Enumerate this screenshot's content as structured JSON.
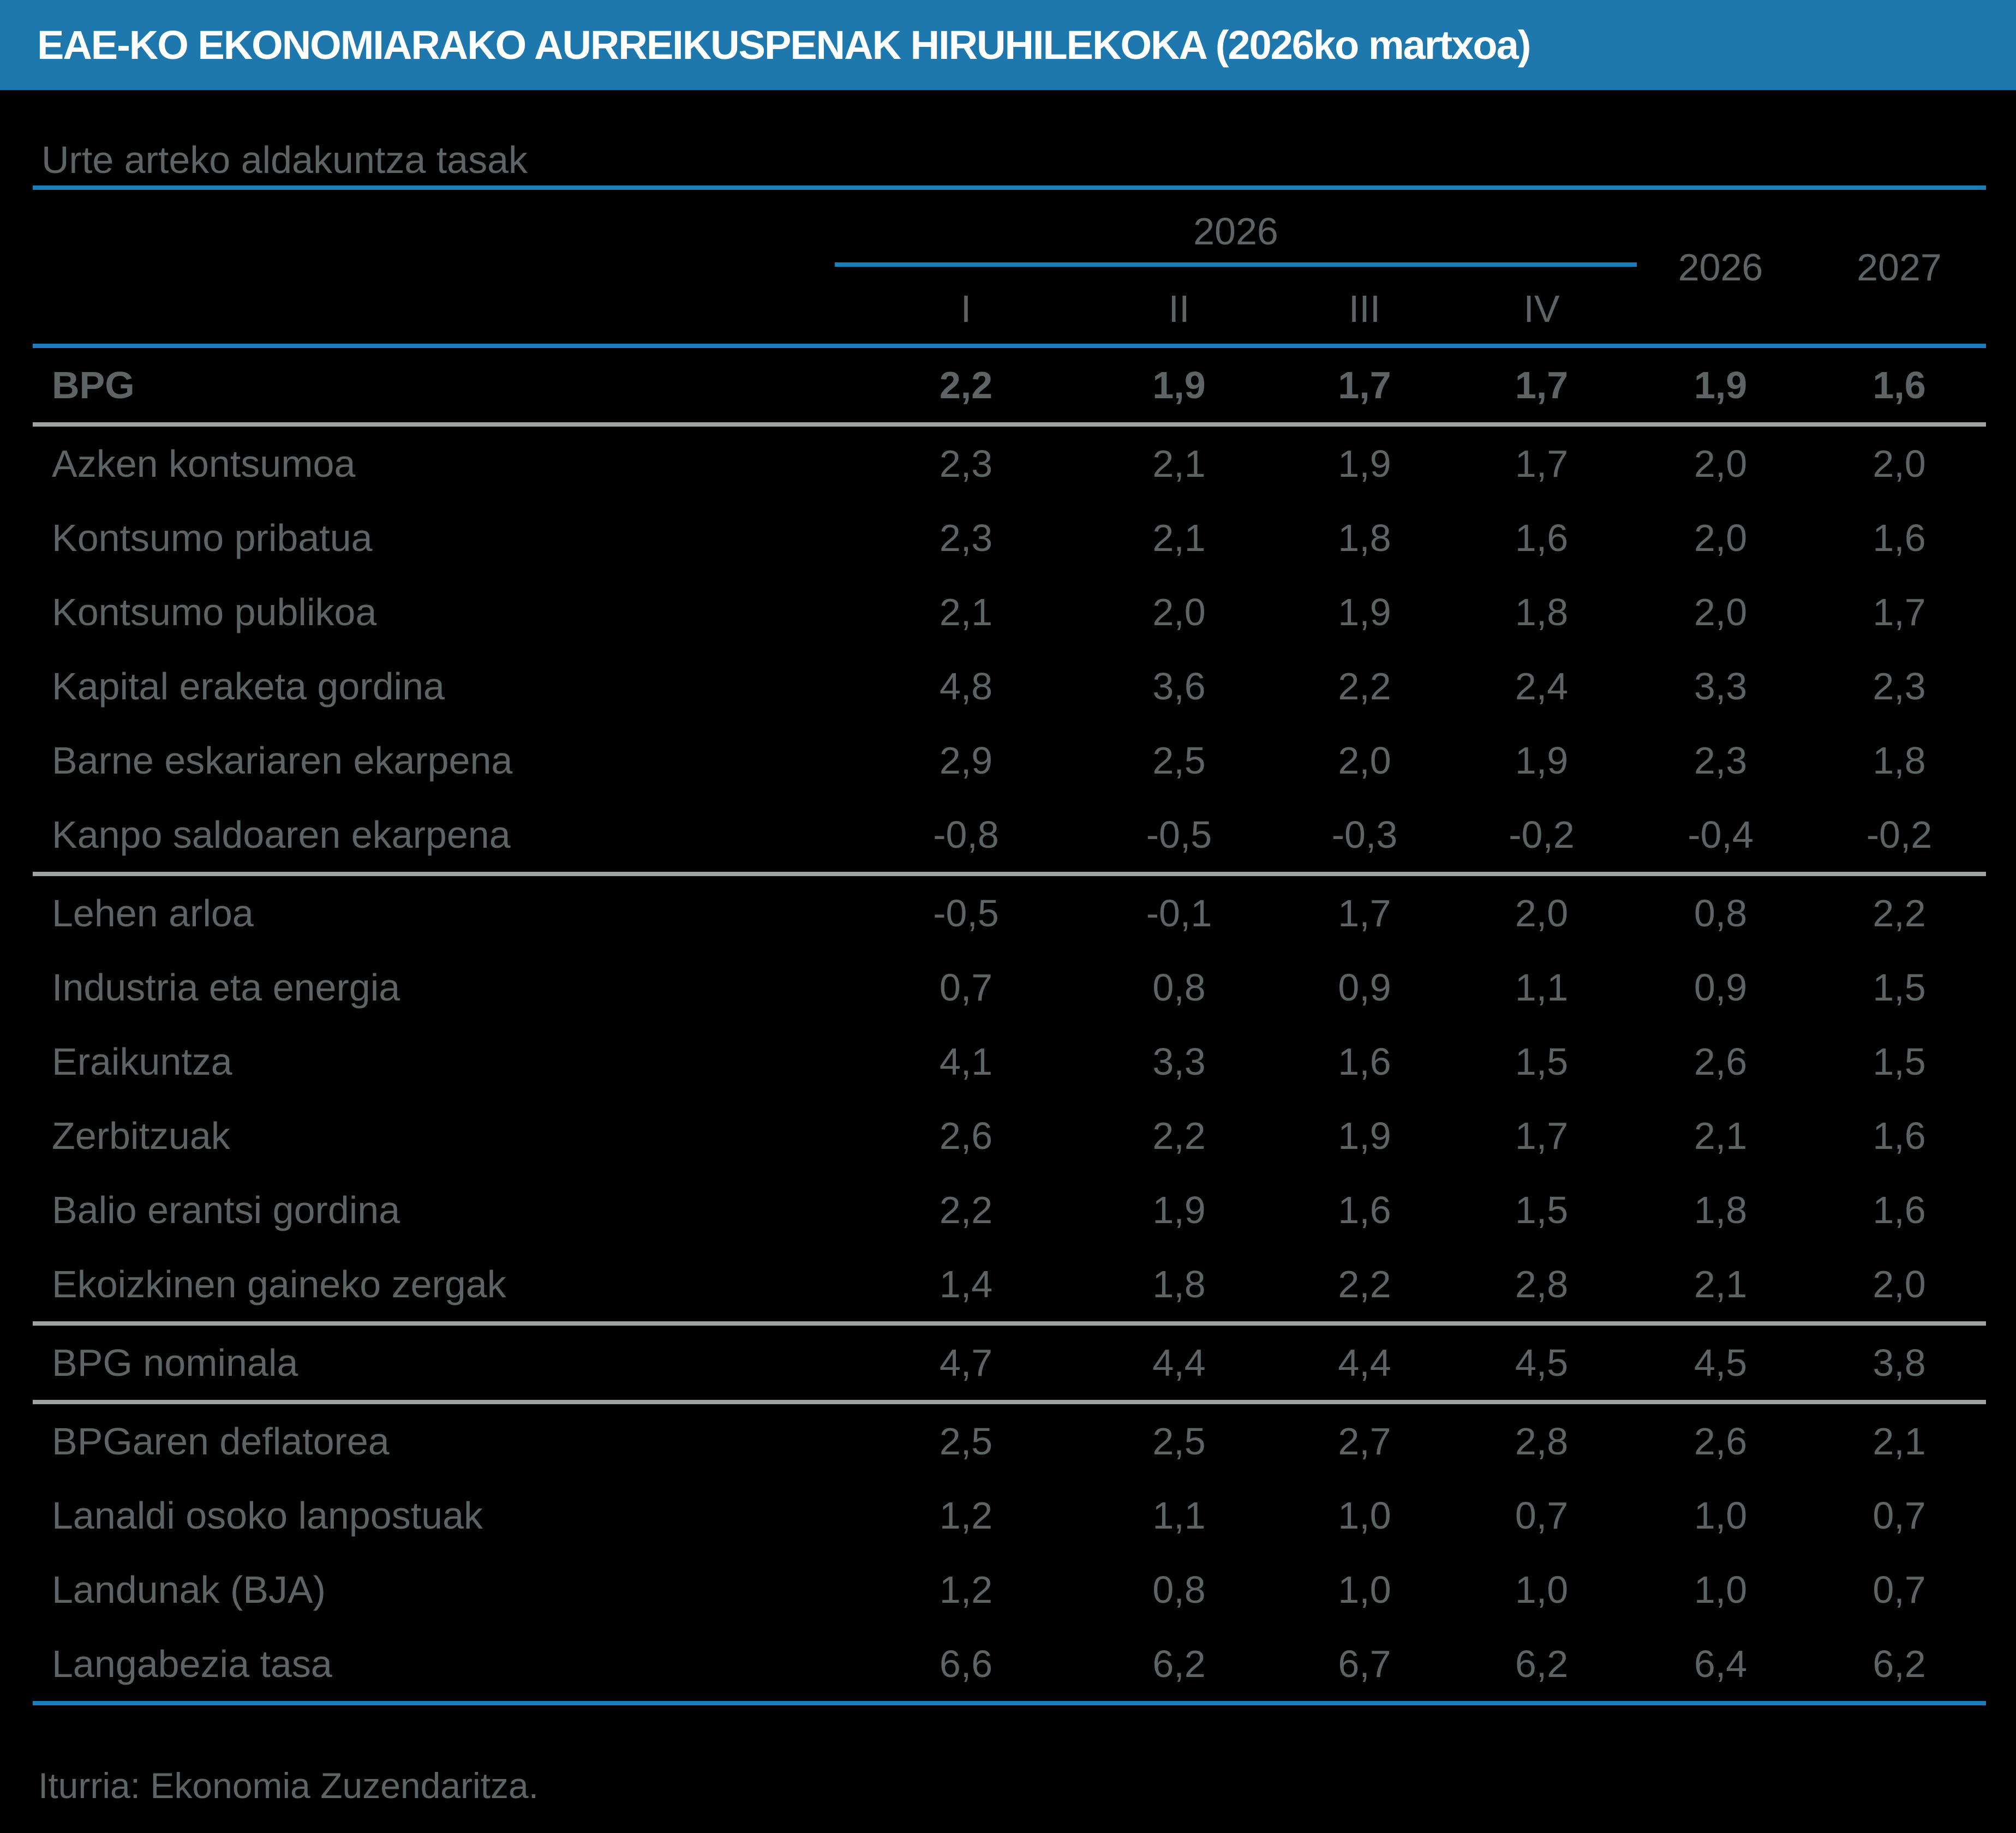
{
  "colors": {
    "title_bar": "#1E78AE",
    "title_text": "#FFFFFF",
    "line_blue": "#1C7EB8",
    "line_gray": "#9EA3A5",
    "text": "#5D6466",
    "background": "#000000"
  },
  "chart_data": {
    "type": "table",
    "title": "EAE-KO EKONOMIARAKO AURREIKUSPENAK HIRUHILEKOKA (2026ko martxoa)",
    "subtitle": "Urte arteko aldakuntza tasak",
    "group_year": "2026",
    "quarters": [
      "I",
      "II",
      "III",
      "IV"
    ],
    "year_columns": [
      "2026",
      "2027"
    ],
    "rows": [
      {
        "label": "BPG",
        "values": [
          "2,2",
          "1,9",
          "1,7",
          "1,7",
          "1,9",
          "1,6"
        ],
        "bold": true,
        "separator_after": true
      },
      {
        "label": "Azken kontsumoa",
        "values": [
          "2,3",
          "2,1",
          "1,9",
          "1,7",
          "2,0",
          "2,0"
        ],
        "bold": false,
        "separator_after": false
      },
      {
        "label": "Kontsumo pribatua",
        "values": [
          "2,3",
          "2,1",
          "1,8",
          "1,6",
          "2,0",
          "1,6"
        ],
        "bold": false,
        "separator_after": false
      },
      {
        "label": "Kontsumo publikoa",
        "values": [
          "2,1",
          "2,0",
          "1,9",
          "1,8",
          "2,0",
          "1,7"
        ],
        "bold": false,
        "separator_after": false
      },
      {
        "label": "Kapital eraketa gordina",
        "values": [
          "4,8",
          "3,6",
          "2,2",
          "2,4",
          "3,3",
          "2,3"
        ],
        "bold": false,
        "separator_after": false
      },
      {
        "label": "Barne eskariaren ekarpena",
        "values": [
          "2,9",
          "2,5",
          "2,0",
          "1,9",
          "2,3",
          "1,8"
        ],
        "bold": false,
        "separator_after": false
      },
      {
        "label": "Kanpo saldoaren ekarpena",
        "values": [
          "-0,8",
          "-0,5",
          "-0,3",
          "-0,2",
          "-0,4",
          "-0,2"
        ],
        "bold": false,
        "separator_after": true
      },
      {
        "label": "Lehen arloa",
        "values": [
          "-0,5",
          "-0,1",
          "1,7",
          "2,0",
          "0,8",
          "2,2"
        ],
        "bold": false,
        "separator_after": false
      },
      {
        "label": "Industria eta energia",
        "values": [
          "0,7",
          "0,8",
          "0,9",
          "1,1",
          "0,9",
          "1,5"
        ],
        "bold": false,
        "separator_after": false
      },
      {
        "label": "Eraikuntza",
        "values": [
          "4,1",
          "3,3",
          "1,6",
          "1,5",
          "2,6",
          "1,5"
        ],
        "bold": false,
        "separator_after": false
      },
      {
        "label": "Zerbitzuak",
        "values": [
          "2,6",
          "2,2",
          "1,9",
          "1,7",
          "2,1",
          "1,6"
        ],
        "bold": false,
        "separator_after": false
      },
      {
        "label": "Balio erantsi gordina",
        "values": [
          "2,2",
          "1,9",
          "1,6",
          "1,5",
          "1,8",
          "1,6"
        ],
        "bold": false,
        "separator_after": false
      },
      {
        "label": "Ekoizkinen gaineko zergak",
        "values": [
          "1,4",
          "1,8",
          "2,2",
          "2,8",
          "2,1",
          "2,0"
        ],
        "bold": false,
        "separator_after": true
      },
      {
        "label": "BPG nominala",
        "values": [
          "4,7",
          "4,4",
          "4,4",
          "4,5",
          "4,5",
          "3,8"
        ],
        "bold": false,
        "separator_after": true
      },
      {
        "label": "BPGaren deflatorea",
        "values": [
          "2,5",
          "2,5",
          "2,7",
          "2,8",
          "2,6",
          "2,1"
        ],
        "bold": false,
        "separator_after": false
      },
      {
        "label": "Lanaldi osoko lanpostuak",
        "values": [
          "1,2",
          "1,1",
          "1,0",
          "0,7",
          "1,0",
          "0,7"
        ],
        "bold": false,
        "separator_after": false
      },
      {
        "label": "Landunak (BJA)",
        "values": [
          "1,2",
          "0,8",
          "1,0",
          "1,0",
          "1,0",
          "0,7"
        ],
        "bold": false,
        "separator_after": false
      },
      {
        "label": "Langabezia tasa",
        "values": [
          "6,6",
          "6,2",
          "6,7",
          "6,2",
          "6,4",
          "6,2"
        ],
        "bold": false,
        "separator_after": false
      }
    ],
    "source": "Iturria: Ekonomia Zuzendaritza."
  }
}
